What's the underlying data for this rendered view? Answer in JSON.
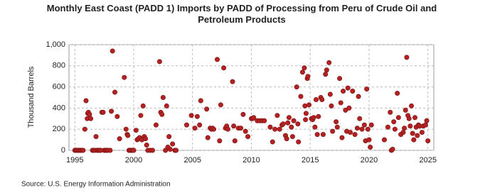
{
  "chart_data": {
    "type": "scatter",
    "title": "Monthly East Coast (PADD 1) Imports by PADD of Processing from Peru of Crude Oil and Petroleum Products",
    "y_label": "Thousand Barrels",
    "source": "Source: U.S. Energy Information Administration",
    "color": "#b22222",
    "grid": true,
    "xlim": [
      1994.5,
      2025.5
    ],
    "xticks": [
      1995,
      2000,
      2005,
      2010,
      2015,
      2020,
      2025
    ],
    "ylim": [
      0,
      1000
    ],
    "yticks": [
      0,
      200,
      400,
      600,
      800,
      {
        "value": 1000,
        "label": "1,000"
      }
    ],
    "x": [
      1995.0,
      1995.1,
      1995.2,
      1995.3,
      1995.4,
      1995.5,
      1995.6,
      1995.7,
      1995.85,
      1995.95,
      1996.05,
      1996.1,
      1996.15,
      1996.25,
      1996.35,
      1996.5,
      1996.6,
      1996.7,
      1996.8,
      1996.9,
      1997.0,
      1997.1,
      1997.2,
      1997.3,
      1997.4,
      1997.5,
      1997.6,
      1997.7,
      1997.8,
      1998.0,
      1998.1,
      1998.2,
      1998.4,
      1998.6,
      1998.8,
      1999.2,
      1999.35,
      1999.45,
      1999.5,
      1999.6,
      1999.7,
      1999.8,
      1999.9,
      2000.0,
      2000.2,
      2000.3,
      2000.4,
      2000.5,
      2000.6,
      2000.7,
      2000.8,
      2000.9,
      2001.0,
      2001.1,
      2001.2,
      2001.4,
      2001.6,
      2001.9,
      2002.2,
      2002.3,
      2002.4,
      2002.5,
      2002.7,
      2002.8,
      2002.9,
      2003.0,
      2003.1,
      2003.3,
      2003.5,
      2003.6,
      2004.5,
      2004.9,
      2005.2,
      2005.4,
      2005.6,
      2005.7,
      2006.2,
      2006.3,
      2006.5,
      2006.6,
      2006.7,
      2006.8,
      2007.1,
      2007.3,
      2007.4,
      2007.65,
      2007.8,
      2007.9,
      2008.0,
      2008.4,
      2008.5,
      2008.6,
      2008.9,
      2009.1,
      2009.3,
      2009.5,
      2009.7,
      2010.0,
      2010.1,
      2010.2,
      2010.5,
      2010.7,
      2010.9,
      2011.1,
      2011.6,
      2011.8,
      2012.0,
      2012.2,
      2012.4,
      2012.6,
      2012.7,
      2012.9,
      2013.0,
      2013.1,
      2013.2,
      2013.4,
      2013.5,
      2013.6,
      2013.85,
      2013.95,
      2014.0,
      2014.2,
      2014.35,
      2014.5,
      2014.55,
      2014.6,
      2014.65,
      2014.75,
      2014.8,
      2014.9,
      2015.1,
      2015.2,
      2015.3,
      2015.4,
      2015.5,
      2015.6,
      2015.7,
      2015.9,
      2016.0,
      2016.1,
      2016.3,
      2016.4,
      2016.6,
      2016.7,
      2016.8,
      2016.9,
      2017.2,
      2017.3,
      2017.5,
      2017.6,
      2017.7,
      2017.8,
      2018.0,
      2018.1,
      2018.2,
      2018.3,
      2018.4,
      2018.6,
      2018.8,
      2019.0,
      2019.1,
      2019.2,
      2019.4,
      2019.6,
      2019.7,
      2019.8,
      2019.9,
      2020.0,
      2020.1,
      2020.2,
      2021.3,
      2021.6,
      2021.8,
      2021.9,
      2022.0,
      2022.1,
      2022.2,
      2022.4,
      2022.5,
      2022.7,
      2022.9,
      2023.0,
      2023.1,
      2023.2,
      2023.3,
      2023.4,
      2023.5,
      2023.6,
      2023.7,
      2023.8,
      2023.9,
      2024.0,
      2024.1,
      2024.2,
      2024.3,
      2024.5,
      2024.6,
      2024.8,
      2024.9,
      2025.0
    ],
    "values": [
      0,
      0,
      0,
      0,
      0,
      0,
      0,
      0,
      200,
      470,
      300,
      350,
      360,
      340,
      300,
      0,
      0,
      0,
      130,
      0,
      0,
      0,
      0,
      360,
      360,
      0,
      0,
      0,
      0,
      0,
      370,
      940,
      550,
      320,
      110,
      690,
      200,
      150,
      140,
      0,
      0,
      0,
      0,
      0,
      190,
      100,
      110,
      120,
      330,
      100,
      420,
      130,
      110,
      50,
      0,
      0,
      0,
      240,
      840,
      360,
      340,
      500,
      0,
      420,
      30,
      130,
      10,
      60,
      0,
      0,
      240,
      330,
      210,
      320,
      240,
      470,
      390,
      120,
      210,
      200,
      210,
      200,
      860,
      90,
      430,
      780,
      210,
      230,
      200,
      650,
      230,
      90,
      210,
      210,
      340,
      180,
      130,
      300,
      300,
      310,
      280,
      280,
      280,
      280,
      220,
      80,
      200,
      330,
      200,
      240,
      250,
      140,
      110,
      260,
      310,
      220,
      130,
      280,
      600,
      250,
      80,
      510,
      740,
      780,
      420,
      290,
      350,
      680,
      700,
      430,
      300,
      290,
      310,
      220,
      480,
      150,
      320,
      500,
      480,
      150,
      720,
      760,
      830,
      530,
      420,
      180,
      270,
      220,
      680,
      450,
      120,
      560,
      380,
      180,
      590,
      400,
      170,
      560,
      150,
      210,
      510,
      300,
      200,
      240,
      90,
      580,
      200,
      100,
      30,
      240,
      100,
      220,
      360,
      0,
      10,
      270,
      200,
      540,
      310,
      150,
      170,
      210,
      380,
      880,
      330,
      300,
      230,
      420,
      160,
      100,
      310,
      220,
      140,
      240,
      230,
      170,
      230,
      240,
      280,
      90
    ]
  }
}
